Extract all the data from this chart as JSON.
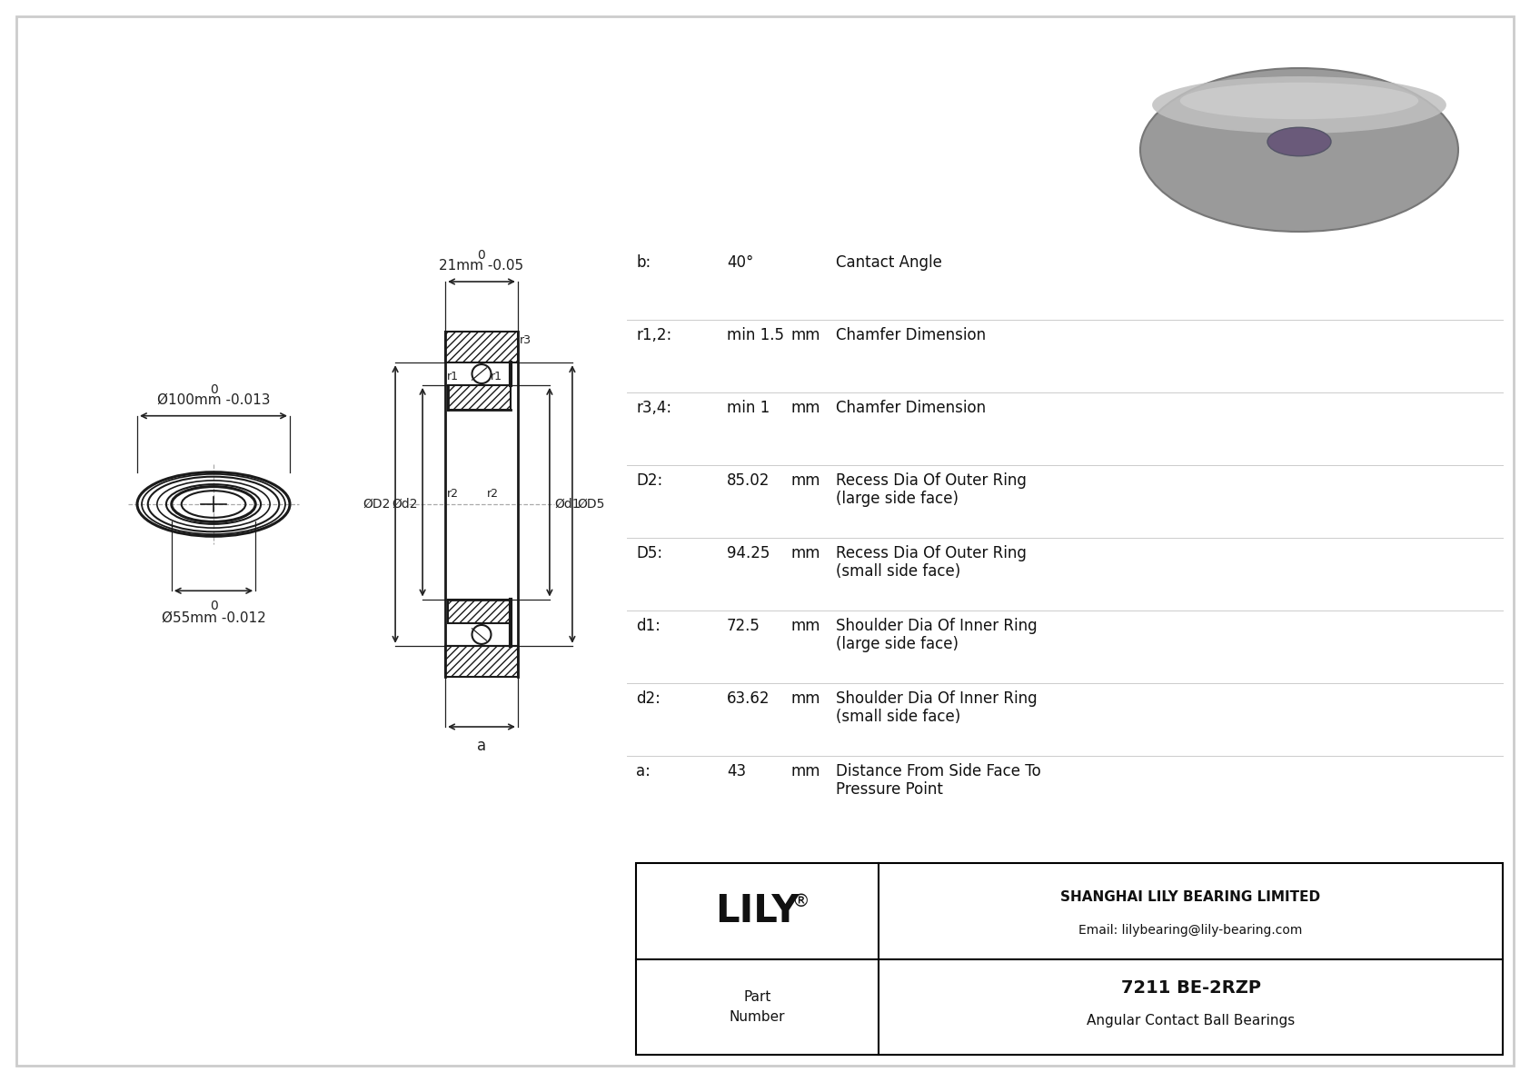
{
  "bg_color": "#e8e8e8",
  "drawing_bg": "#ffffff",
  "line_color": "#1a1a1a",
  "dim_color": "#222222",
  "params": [
    {
      "label": "b:",
      "value": "40°",
      "unit": "",
      "desc1": "Cantact Angle",
      "desc2": ""
    },
    {
      "label": "r1,2:",
      "value": "min 1.5",
      "unit": "mm",
      "desc1": "Chamfer Dimension",
      "desc2": ""
    },
    {
      "label": "r3,4:",
      "value": "min 1",
      "unit": "mm",
      "desc1": "Chamfer Dimension",
      "desc2": ""
    },
    {
      "label": "D2:",
      "value": "85.02",
      "unit": "mm",
      "desc1": "Recess Dia Of Outer Ring",
      "desc2": "(large side face)"
    },
    {
      "label": "D5:",
      "value": "94.25",
      "unit": "mm",
      "desc1": "Recess Dia Of Outer Ring",
      "desc2": "(small side face)"
    },
    {
      "label": "d1:",
      "value": "72.5",
      "unit": "mm",
      "desc1": "Shoulder Dia Of Inner Ring",
      "desc2": "(large side face)"
    },
    {
      "label": "d2:",
      "value": "63.62",
      "unit": "mm",
      "desc1": "Shoulder Dia Of Inner Ring",
      "desc2": "(small side face)"
    },
    {
      "label": "a:",
      "value": "43",
      "unit": "mm",
      "desc1": "Distance From Side Face To",
      "desc2": "Pressure Point"
    }
  ],
  "lily_text": "LILY",
  "lily_super": "®",
  "company_line1": "SHANGHAI LILY BEARING LIMITED",
  "company_line2": "Email: lilybearing@lily-bearing.com",
  "part_label": "Part\nNumber",
  "part_number": "7211 BE-2RZP",
  "part_type": "Angular Contact Ball Bearings",
  "outer_dim_label": "Ø100mm -0.013",
  "inner_dim_label": "Ø55mm -0.012",
  "width_dim_label": "21mm -0.05"
}
